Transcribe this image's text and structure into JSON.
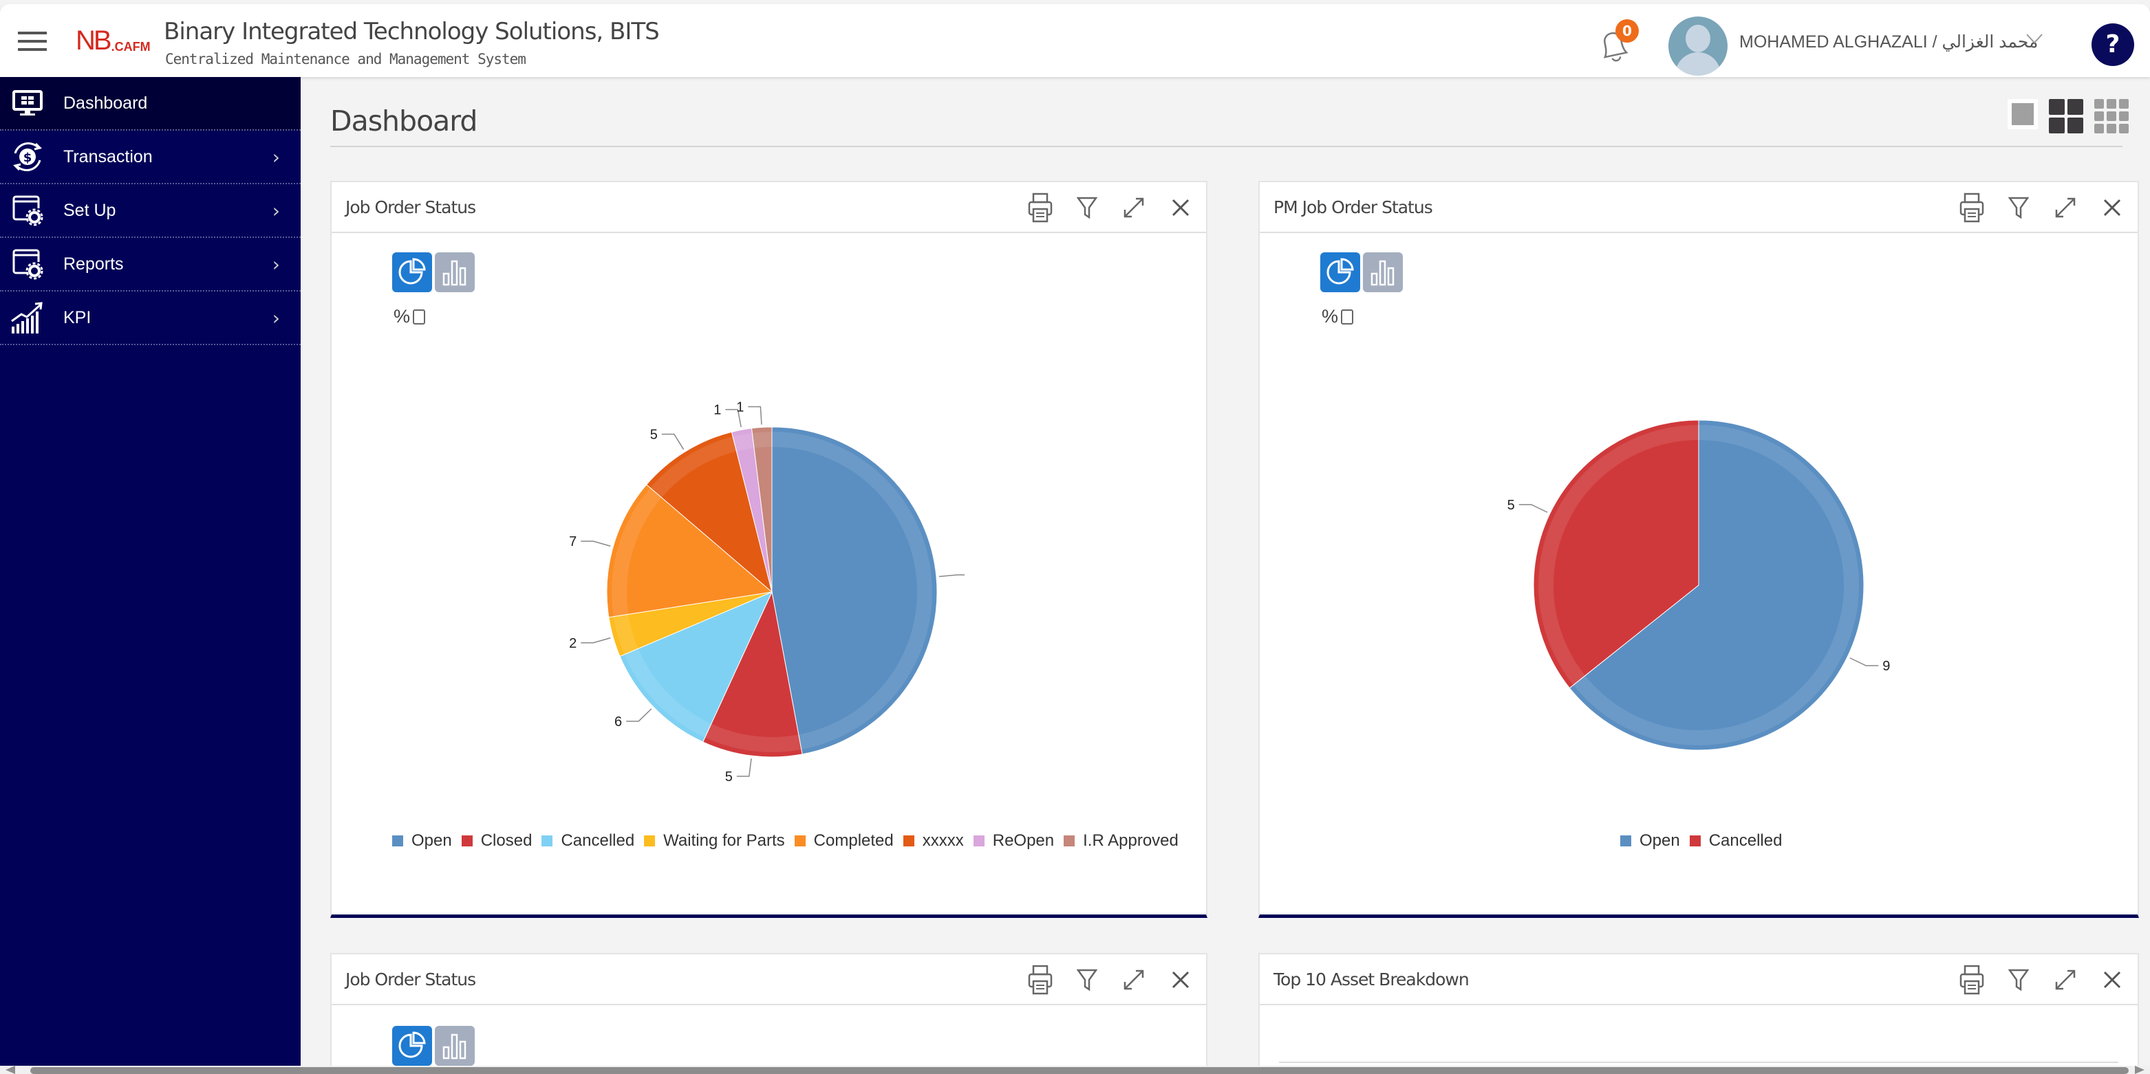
{
  "header": {
    "logo_main": "NB",
    "logo_suffix": ".CAFM",
    "company": "Binary Integrated Technology Solutions, BITS",
    "subtitle": "Centralized Maintenance and Management System",
    "notification_count": "0",
    "user_name": "MOHAMED ALGHAZALI / محمد الغزالي",
    "help_label": "?"
  },
  "sidebar": {
    "items": [
      {
        "label": "Dashboard",
        "icon": "monitor-dashboard-icon",
        "active": true
      },
      {
        "label": "Transaction",
        "icon": "dollar-refresh-icon"
      },
      {
        "label": "Set Up",
        "icon": "window-gear-icon"
      },
      {
        "label": "Reports",
        "icon": "window-gear-icon"
      },
      {
        "label": "KPI",
        "icon": "growth-chart-icon"
      }
    ],
    "chevron": "›"
  },
  "main": {
    "title": "Dashboard",
    "layout_options": [
      "single-column",
      "two-column",
      "three-column"
    ],
    "selected_layout": "two-column"
  },
  "widgets": [
    {
      "title": "Job Order Status",
      "percent_label": "%",
      "percent_checked": false,
      "chart_type_selected": "pie"
    },
    {
      "title": "PM Job Order Status",
      "percent_label": "%",
      "percent_checked": false,
      "chart_type_selected": "pie"
    },
    {
      "title": "Job Order Status"
    },
    {
      "title": "Top 10 Asset Breakdown"
    }
  ],
  "chart_data": [
    {
      "type": "pie",
      "title": "Job Order Status",
      "categories": [
        "Open",
        "Closed",
        "Cancelled",
        "Waiting for Parts",
        "Completed",
        "xxxxx",
        "ReOpen",
        "I.R Approved"
      ],
      "values": [
        24,
        5,
        6,
        2,
        7,
        5,
        1,
        1
      ],
      "colors": [
        "#5b8fc2",
        "#d0393b",
        "#7fd1f3",
        "#fdbc1f",
        "#fb8c24",
        "#e35a13",
        "#d9a6dd",
        "#c6867a"
      ],
      "legend_position": "bottom",
      "data_labels": true
    },
    {
      "type": "pie",
      "title": "PM Job Order Status",
      "categories": [
        "Open",
        "Cancelled"
      ],
      "values": [
        9,
        5
      ],
      "colors": [
        "#5b8fc2",
        "#d0393b"
      ],
      "legend_position": "bottom",
      "data_labels": true
    }
  ],
  "colors": {
    "sidebar_bg": "#010157",
    "sidebar_active": "#000037",
    "accent_blue": "#1f7bd1",
    "badge_orange": "#ef6c1a",
    "logo_red": "#d42a20"
  }
}
